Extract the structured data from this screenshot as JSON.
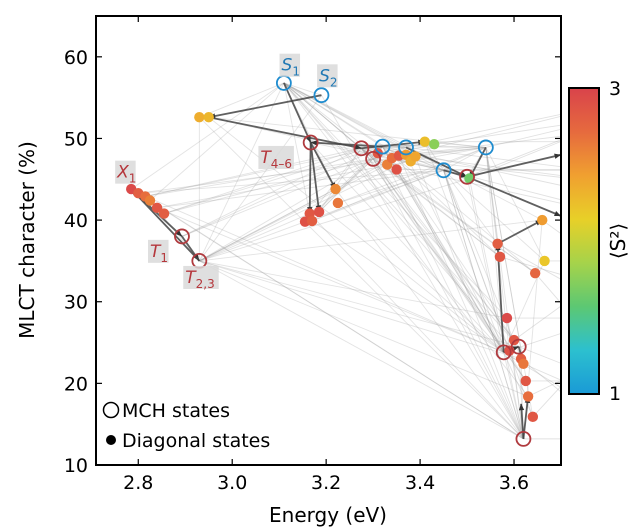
{
  "chart_data": {
    "type": "scatter",
    "xlabel": "Energy (eV)",
    "ylabel": "MLCT character (%)",
    "xlim": [
      2.71,
      3.7
    ],
    "ylim": [
      10,
      65
    ],
    "xticks": [
      2.8,
      3.0,
      3.2,
      3.4,
      3.6
    ],
    "xtick_labels": [
      "2.8",
      "3.0",
      "3.2",
      "3.4",
      "3.6"
    ],
    "yticks": [
      10,
      20,
      30,
      40,
      50,
      60
    ],
    "ytick_labels": [
      "10",
      "20",
      "30",
      "40",
      "50",
      "60"
    ],
    "grid": false,
    "colorbar": {
      "label": "⟨S²⟩",
      "min": 1,
      "max": 3,
      "tick_labels": [
        "1",
        "3"
      ],
      "colors": [
        "#1a9ad6",
        "#2cc0cf",
        "#5cc873",
        "#a6d34a",
        "#e8d028",
        "#f0a030",
        "#e66a3e",
        "#d9434b"
      ]
    },
    "legend": {
      "placement": "bottom-left",
      "items": [
        {
          "marker": "open-circle",
          "label": "MCH states"
        },
        {
          "marker": "filled-circle",
          "label": "Diagonal states"
        }
      ]
    },
    "state_labels": [
      {
        "text": "S",
        "sub": "1",
        "x": 3.105,
        "y": 58.3,
        "color": "#1f78b4"
      },
      {
        "text": "S",
        "sub": "2",
        "x": 3.185,
        "y": 57.0,
        "color": "#1f78b4"
      },
      {
        "text": "X",
        "sub": "1",
        "x": 2.755,
        "y": 45.2,
        "color": "#b5373c"
      },
      {
        "text": "T",
        "sub": "4–6",
        "x": 3.06,
        "y": 47.0,
        "color": "#b5373c"
      },
      {
        "text": "T",
        "sub": "1",
        "x": 2.825,
        "y": 35.5,
        "color": "#b5373c"
      },
      {
        "text": "T",
        "sub": "2,3",
        "x": 2.9,
        "y": 32.3,
        "color": "#b5373c"
      }
    ],
    "mch_states": [
      {
        "x": 3.11,
        "y": 56.8,
        "type": "singlet"
      },
      {
        "x": 3.19,
        "y": 55.3,
        "type": "singlet"
      },
      {
        "x": 3.32,
        "y": 49.0,
        "type": "singlet"
      },
      {
        "x": 3.37,
        "y": 48.9,
        "type": "singlet"
      },
      {
        "x": 3.45,
        "y": 46.1,
        "type": "singlet"
      },
      {
        "x": 3.54,
        "y": 48.9,
        "type": "singlet"
      },
      {
        "x": 2.893,
        "y": 38.0,
        "type": "triplet"
      },
      {
        "x": 2.93,
        "y": 35.0,
        "type": "triplet"
      },
      {
        "x": 3.167,
        "y": 49.5,
        "type": "triplet"
      },
      {
        "x": 3.275,
        "y": 48.8,
        "type": "triplet"
      },
      {
        "x": 3.3,
        "y": 47.5,
        "type": "triplet"
      },
      {
        "x": 3.5,
        "y": 45.3,
        "type": "triplet"
      },
      {
        "x": 3.578,
        "y": 23.8,
        "type": "triplet"
      },
      {
        "x": 3.61,
        "y": 24.5,
        "type": "triplet"
      },
      {
        "x": 3.62,
        "y": 13.2,
        "type": "triplet"
      }
    ],
    "diagonal_states": [
      {
        "x": 2.785,
        "y": 43.8,
        "s2": 2.95
      },
      {
        "x": 2.8,
        "y": 43.3,
        "s2": 2.8
      },
      {
        "x": 2.815,
        "y": 42.9,
        "s2": 2.7
      },
      {
        "x": 2.825,
        "y": 42.4,
        "s2": 2.6
      },
      {
        "x": 2.84,
        "y": 41.5,
        "s2": 2.85
      },
      {
        "x": 2.855,
        "y": 40.8,
        "s2": 2.8
      },
      {
        "x": 2.93,
        "y": 52.6,
        "s2": 2.35
      },
      {
        "x": 2.95,
        "y": 52.6,
        "s2": 2.3
      },
      {
        "x": 3.155,
        "y": 39.8,
        "s2": 2.9
      },
      {
        "x": 3.165,
        "y": 40.8,
        "s2": 2.85
      },
      {
        "x": 3.17,
        "y": 39.9,
        "s2": 2.8
      },
      {
        "x": 3.185,
        "y": 41.0,
        "s2": 2.9
      },
      {
        "x": 3.22,
        "y": 43.8,
        "s2": 2.55
      },
      {
        "x": 3.225,
        "y": 42.1,
        "s2": 2.65
      },
      {
        "x": 3.31,
        "y": 48.2,
        "s2": 2.85
      },
      {
        "x": 3.33,
        "y": 46.8,
        "s2": 2.6
      },
      {
        "x": 3.34,
        "y": 47.6,
        "s2": 2.7
      },
      {
        "x": 3.35,
        "y": 46.2,
        "s2": 2.9
      },
      {
        "x": 3.355,
        "y": 47.9,
        "s2": 2.85
      },
      {
        "x": 3.37,
        "y": 48.0,
        "s2": 2.45
      },
      {
        "x": 3.38,
        "y": 47.2,
        "s2": 2.35
      },
      {
        "x": 3.39,
        "y": 47.8,
        "s2": 2.4
      },
      {
        "x": 3.41,
        "y": 49.6,
        "s2": 2.25
      },
      {
        "x": 3.43,
        "y": 49.3,
        "s2": 1.75
      },
      {
        "x": 3.505,
        "y": 45.1,
        "s2": 1.65
      },
      {
        "x": 3.565,
        "y": 37.1,
        "s2": 2.8
      },
      {
        "x": 3.57,
        "y": 35.5,
        "s2": 2.85
      },
      {
        "x": 3.585,
        "y": 28.0,
        "s2": 2.95
      },
      {
        "x": 3.59,
        "y": 24.0,
        "s2": 2.9
      },
      {
        "x": 3.6,
        "y": 25.3,
        "s2": 2.85
      },
      {
        "x": 3.615,
        "y": 23.0,
        "s2": 2.8
      },
      {
        "x": 3.62,
        "y": 22.4,
        "s2": 2.65
      },
      {
        "x": 3.625,
        "y": 20.3,
        "s2": 2.85
      },
      {
        "x": 3.63,
        "y": 18.4,
        "s2": 2.7
      },
      {
        "x": 3.64,
        "y": 15.9,
        "s2": 2.85
      },
      {
        "x": 3.645,
        "y": 33.5,
        "s2": 2.75
      },
      {
        "x": 3.66,
        "y": 40.0,
        "s2": 2.45
      },
      {
        "x": 3.665,
        "y": 35.0,
        "s2": 2.2
      }
    ],
    "arrows": [
      {
        "from": [
          3.19,
          55.3
        ],
        "to": [
          2.95,
          52.6
        ]
      },
      {
        "from": [
          3.11,
          56.8
        ],
        "to": [
          3.167,
          49.5
        ]
      },
      {
        "from": [
          3.167,
          49.5
        ],
        "to": [
          3.165,
          40.8
        ]
      },
      {
        "from": [
          3.167,
          49.5
        ],
        "to": [
          3.185,
          41.0
        ]
      },
      {
        "from": [
          3.167,
          49.5
        ],
        "to": [
          3.22,
          43.8
        ]
      },
      {
        "from": [
          3.32,
          49.0
        ],
        "to": [
          3.167,
          49.5
        ]
      },
      {
        "from": [
          2.95,
          52.6
        ],
        "to": [
          3.275,
          48.8
        ]
      },
      {
        "from": [
          3.275,
          48.8
        ],
        "to": [
          3.41,
          49.6
        ]
      },
      {
        "from": [
          3.37,
          48.9
        ],
        "to": [
          3.5,
          45.3
        ]
      },
      {
        "from": [
          3.45,
          46.1
        ],
        "to": [
          3.5,
          45.3
        ]
      },
      {
        "from": [
          3.54,
          48.9
        ],
        "to": [
          3.505,
          45.1
        ]
      },
      {
        "from": [
          2.785,
          43.8
        ],
        "to": [
          2.893,
          38.0
        ]
      },
      {
        "from": [
          2.893,
          38.0
        ],
        "to": [
          2.93,
          35.0
        ]
      },
      {
        "from": [
          2.93,
          35.0
        ],
        "to": [
          2.785,
          43.8
        ]
      },
      {
        "from": [
          3.578,
          23.8
        ],
        "to": [
          3.565,
          37.1
        ]
      },
      {
        "from": [
          3.578,
          23.8
        ],
        "to": [
          3.61,
          24.5
        ]
      },
      {
        "from": [
          3.61,
          24.5
        ],
        "to": [
          3.62,
          22.4
        ]
      },
      {
        "from": [
          3.62,
          13.2
        ],
        "to": [
          3.63,
          18.4
        ]
      },
      {
        "from": [
          3.62,
          13.2
        ],
        "to": [
          3.615,
          17.5
        ]
      },
      {
        "from": [
          3.565,
          37.1
        ],
        "to": [
          3.66,
          40.0
        ]
      },
      {
        "from": [
          3.5,
          45.3
        ],
        "to": [
          3.7,
          48.0
        ]
      },
      {
        "from": [
          3.5,
          45.3
        ],
        "to": [
          3.7,
          40.5
        ]
      }
    ]
  }
}
